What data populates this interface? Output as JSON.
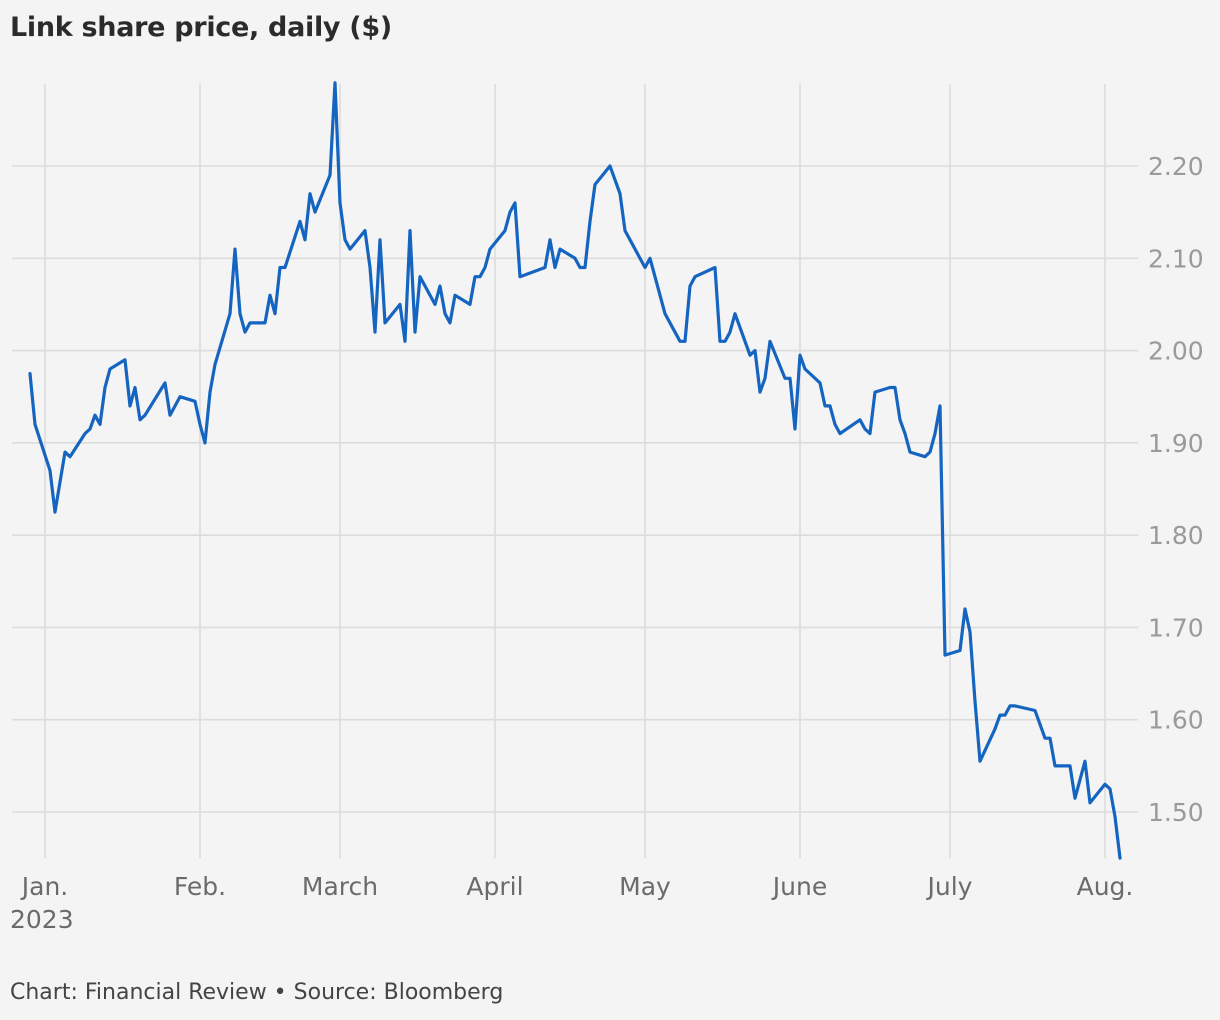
{
  "title": "Link share price, daily ($)",
  "footer": "Chart: Financial Review • Source: Bloomberg",
  "colors": {
    "line": "#1565c0",
    "background": "#f4f4f4",
    "grid": "#dcdcdc"
  },
  "chart_data": {
    "type": "line",
    "title": "Link share price, daily ($)",
    "xlabel": "",
    "ylabel": "",
    "grid": "on",
    "y_axis_side": "right",
    "ylim": [
      1.45,
      2.29
    ],
    "y_ticks": [
      "1.50",
      "1.60",
      "1.70",
      "1.80",
      "1.90",
      "2.00",
      "2.10",
      "2.20"
    ],
    "x_ticks": [
      {
        "date": "2023-01-01",
        "label": "Jan.",
        "sublabel": "2023"
      },
      {
        "date": "2023-02-01",
        "label": "Feb."
      },
      {
        "date": "2023-03-01",
        "label": "March"
      },
      {
        "date": "2023-04-01",
        "label": "April"
      },
      {
        "date": "2023-05-01",
        "label": "May"
      },
      {
        "date": "2023-06-01",
        "label": "June"
      },
      {
        "date": "2023-07-01",
        "label": "July"
      },
      {
        "date": "2023-08-01",
        "label": "Aug."
      }
    ],
    "series": [
      {
        "values": [
          [
            "2022-12-29",
            1.975
          ],
          [
            "2022-12-30",
            1.92
          ],
          [
            "2023-01-02",
            1.87
          ],
          [
            "2023-01-03",
            1.825
          ],
          [
            "2023-01-05",
            1.89
          ],
          [
            "2023-01-06",
            1.885
          ],
          [
            "2023-01-09",
            1.91
          ],
          [
            "2023-01-10",
            1.915
          ],
          [
            "2023-01-11",
            1.93
          ],
          [
            "2023-01-12",
            1.92
          ],
          [
            "2023-01-13",
            1.96
          ],
          [
            "2023-01-14",
            1.98
          ],
          [
            "2023-01-17",
            1.99
          ],
          [
            "2023-01-18",
            1.94
          ],
          [
            "2023-01-19",
            1.96
          ],
          [
            "2023-01-20",
            1.925
          ],
          [
            "2023-01-21",
            1.93
          ],
          [
            "2023-01-25",
            1.965
          ],
          [
            "2023-01-26",
            1.93
          ],
          [
            "2023-01-28",
            1.95
          ],
          [
            "2023-01-31",
            1.945
          ],
          [
            "2023-02-01",
            1.92
          ],
          [
            "2023-02-02",
            1.9
          ],
          [
            "2023-02-03",
            1.955
          ],
          [
            "2023-02-04",
            1.985
          ],
          [
            "2023-02-07",
            2.04
          ],
          [
            "2023-02-08",
            2.11
          ],
          [
            "2023-02-09",
            2.04
          ],
          [
            "2023-02-10",
            2.02
          ],
          [
            "2023-02-11",
            2.03
          ],
          [
            "2023-02-14",
            2.03
          ],
          [
            "2023-02-15",
            2.06
          ],
          [
            "2023-02-16",
            2.04
          ],
          [
            "2023-02-17",
            2.09
          ],
          [
            "2023-02-18",
            2.09
          ],
          [
            "2023-02-21",
            2.14
          ],
          [
            "2023-02-22",
            2.12
          ],
          [
            "2023-02-23",
            2.17
          ],
          [
            "2023-02-24",
            2.15
          ],
          [
            "2023-02-27",
            2.19
          ],
          [
            "2023-02-28",
            2.29
          ],
          [
            "2023-03-01",
            2.16
          ],
          [
            "2023-03-02",
            2.12
          ],
          [
            "2023-03-03",
            2.11
          ],
          [
            "2023-03-06",
            2.13
          ],
          [
            "2023-03-07",
            2.09
          ],
          [
            "2023-03-08",
            2.02
          ],
          [
            "2023-03-09",
            2.12
          ],
          [
            "2023-03-10",
            2.03
          ],
          [
            "2023-03-13",
            2.05
          ],
          [
            "2023-03-14",
            2.01
          ],
          [
            "2023-03-15",
            2.13
          ],
          [
            "2023-03-16",
            2.02
          ],
          [
            "2023-03-17",
            2.08
          ],
          [
            "2023-03-20",
            2.05
          ],
          [
            "2023-03-21",
            2.07
          ],
          [
            "2023-03-22",
            2.04
          ],
          [
            "2023-03-23",
            2.03
          ],
          [
            "2023-03-24",
            2.06
          ],
          [
            "2023-03-27",
            2.05
          ],
          [
            "2023-03-28",
            2.08
          ],
          [
            "2023-03-29",
            2.08
          ],
          [
            "2023-03-30",
            2.09
          ],
          [
            "2023-03-31",
            2.11
          ],
          [
            "2023-04-03",
            2.13
          ],
          [
            "2023-04-04",
            2.15
          ],
          [
            "2023-04-05",
            2.16
          ],
          [
            "2023-04-06",
            2.08
          ],
          [
            "2023-04-11",
            2.09
          ],
          [
            "2023-04-12",
            2.12
          ],
          [
            "2023-04-13",
            2.09
          ],
          [
            "2023-04-14",
            2.11
          ],
          [
            "2023-04-17",
            2.1
          ],
          [
            "2023-04-18",
            2.09
          ],
          [
            "2023-04-19",
            2.09
          ],
          [
            "2023-04-20",
            2.14
          ],
          [
            "2023-04-21",
            2.18
          ],
          [
            "2023-04-24",
            2.2
          ],
          [
            "2023-04-26",
            2.17
          ],
          [
            "2023-04-27",
            2.13
          ],
          [
            "2023-04-28",
            2.12
          ],
          [
            "2023-05-01",
            2.09
          ],
          [
            "2023-05-02",
            2.1
          ],
          [
            "2023-05-05",
            2.04
          ],
          [
            "2023-05-08",
            2.01
          ],
          [
            "2023-05-09",
            2.01
          ],
          [
            "2023-05-10",
            2.07
          ],
          [
            "2023-05-11",
            2.08
          ],
          [
            "2023-05-15",
            2.09
          ],
          [
            "2023-05-16",
            2.01
          ],
          [
            "2023-05-17",
            2.01
          ],
          [
            "2023-05-18",
            2.02
          ],
          [
            "2023-05-19",
            2.04
          ],
          [
            "2023-05-22",
            1.995
          ],
          [
            "2023-05-23",
            2.0
          ],
          [
            "2023-05-24",
            1.955
          ],
          [
            "2023-05-25",
            1.97
          ],
          [
            "2023-05-26",
            2.01
          ],
          [
            "2023-05-29",
            1.97
          ],
          [
            "2023-05-30",
            1.97
          ],
          [
            "2023-05-31",
            1.915
          ],
          [
            "2023-06-01",
            1.995
          ],
          [
            "2023-06-02",
            1.98
          ],
          [
            "2023-06-05",
            1.965
          ],
          [
            "2023-06-06",
            1.94
          ],
          [
            "2023-06-07",
            1.94
          ],
          [
            "2023-06-08",
            1.92
          ],
          [
            "2023-06-09",
            1.91
          ],
          [
            "2023-06-13",
            1.925
          ],
          [
            "2023-06-14",
            1.915
          ],
          [
            "2023-06-15",
            1.91
          ],
          [
            "2023-06-16",
            1.955
          ],
          [
            "2023-06-19",
            1.96
          ],
          [
            "2023-06-20",
            1.96
          ],
          [
            "2023-06-21",
            1.925
          ],
          [
            "2023-06-22",
            1.91
          ],
          [
            "2023-06-23",
            1.89
          ],
          [
            "2023-06-26",
            1.885
          ],
          [
            "2023-06-27",
            1.89
          ],
          [
            "2023-06-28",
            1.91
          ],
          [
            "2023-06-29",
            1.94
          ],
          [
            "2023-06-30",
            1.67
          ],
          [
            "2023-07-03",
            1.675
          ],
          [
            "2023-07-04",
            1.72
          ],
          [
            "2023-07-05",
            1.695
          ],
          [
            "2023-07-06",
            1.62
          ],
          [
            "2023-07-07",
            1.555
          ],
          [
            "2023-07-10",
            1.59
          ],
          [
            "2023-07-11",
            1.605
          ],
          [
            "2023-07-12",
            1.605
          ],
          [
            "2023-07-13",
            1.615
          ],
          [
            "2023-07-14",
            1.615
          ],
          [
            "2023-07-18",
            1.61
          ],
          [
            "2023-07-19",
            1.595
          ],
          [
            "2023-07-20",
            1.58
          ],
          [
            "2023-07-21",
            1.58
          ],
          [
            "2023-07-22",
            1.55
          ],
          [
            "2023-07-25",
            1.55
          ],
          [
            "2023-07-26",
            1.515
          ],
          [
            "2023-07-27",
            1.535
          ],
          [
            "2023-07-28",
            1.555
          ],
          [
            "2023-07-29",
            1.51
          ],
          [
            "2023-08-01",
            1.53
          ],
          [
            "2023-08-02",
            1.525
          ],
          [
            "2023-08-03",
            1.495
          ],
          [
            "2023-08-04",
            1.45
          ]
        ]
      }
    ]
  }
}
